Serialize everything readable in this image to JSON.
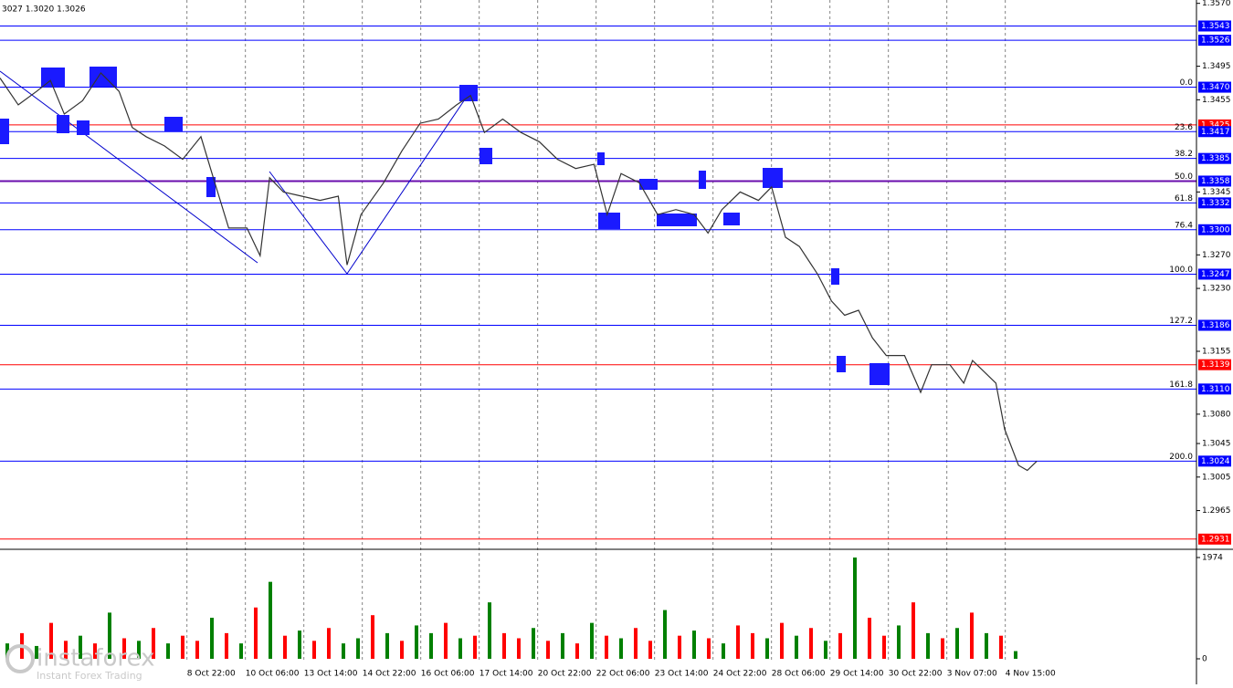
{
  "chart_data": [
    {
      "type": "line",
      "header": "3027 1.3020 1.3026",
      "color": "#333333",
      "x": [
        0,
        2.5,
        5,
        6.9,
        8.8,
        11.3,
        13.8,
        16.3,
        18.1,
        20,
        22.5,
        25,
        27.5,
        29.4,
        31.3,
        33.8,
        35.6,
        36.9,
        38.8,
        41.3,
        43.8,
        46.3,
        47.5,
        49.4,
        52.5,
        55,
        57.5,
        60,
        62.5,
        64.4,
        66.3,
        68.8,
        71.3,
        73.8,
        76.3,
        78.8,
        81.3,
        83.1,
        85,
        87.5,
        90,
        92.5,
        95,
        96.9,
        98.8,
        101.3,
        103.8,
        105.6,
        107.5,
        109.4,
        111.9,
        113.8,
        115.6,
        117.5,
        119.4,
        121.3,
        123.8,
        126,
        127.5,
        130,
        131.9,
        133.1,
        135,
        136.3,
        137.5,
        139.4,
        140.6,
        141.9
      ],
      "values": [
        1.3481,
        1.3449,
        1.3465,
        1.3478,
        1.3438,
        1.3454,
        1.3487,
        1.3465,
        1.3422,
        1.3411,
        1.34,
        1.3384,
        1.3411,
        1.3356,
        1.3302,
        1.3302,
        1.3269,
        1.3362,
        1.3345,
        1.334,
        1.3335,
        1.334,
        1.3258,
        1.3318,
        1.3356,
        1.3394,
        1.3427,
        1.3432,
        1.3449,
        1.346,
        1.3416,
        1.3432,
        1.3416,
        1.3405,
        1.3384,
        1.3373,
        1.3378,
        1.3318,
        1.3367,
        1.3356,
        1.3318,
        1.3324,
        1.3318,
        1.3296,
        1.3324,
        1.3345,
        1.3335,
        1.3351,
        1.3291,
        1.328,
        1.3247,
        1.3215,
        1.3198,
        1.3204,
        1.3171,
        1.315,
        1.315,
        1.3106,
        1.3139,
        1.3139,
        1.3117,
        1.3144,
        1.3128,
        1.3117,
        1.3062,
        1.3019,
        1.3013,
        1.3024
      ],
      "xlim": [
        0,
        163.75
      ],
      "ylim": [
        1.2921,
        1.3574
      ],
      "xticks": [
        {
          "value": 25.6,
          "label": "8 Oct 22:00"
        },
        {
          "value": 33.6,
          "label": "10 Oct 06:00"
        },
        {
          "value": 41.6,
          "label": "13 Oct 14:00"
        },
        {
          "value": 49.6,
          "label": "14 Oct 22:00"
        },
        {
          "value": 57.6,
          "label": "16 Oct 06:00"
        },
        {
          "value": 65.6,
          "label": "17 Oct 14:00"
        },
        {
          "value": 73.6,
          "label": "20 Oct 22:00"
        },
        {
          "value": 81.6,
          "label": "22 Oct 06:00"
        },
        {
          "value": 89.6,
          "label": "23 Oct 14:00"
        },
        {
          "value": 97.6,
          "label": "24 Oct 22:00"
        },
        {
          "value": 105.6,
          "label": "28 Oct 06:00"
        },
        {
          "value": 113.6,
          "label": "29 Oct 14:00"
        },
        {
          "value": 121.6,
          "label": "30 Oct 22:00"
        },
        {
          "value": 129.6,
          "label": "3 Nov 07:00"
        },
        {
          "value": 137.6,
          "label": "4 Nov 15:00"
        }
      ],
      "yticks": [
        {
          "value": 1.357,
          "label": "1.3570"
        },
        {
          "value": 1.3495,
          "label": "1.3495"
        },
        {
          "value": 1.3455,
          "label": "1.3455"
        },
        {
          "value": 1.3345,
          "label": "1.3345"
        },
        {
          "value": 1.327,
          "label": "1.3270"
        },
        {
          "value": 1.323,
          "label": "1.3230"
        },
        {
          "value": 1.3155,
          "label": "1.3155"
        },
        {
          "value": 1.308,
          "label": "1.3080"
        },
        {
          "value": 1.3045,
          "label": "1.3045"
        },
        {
          "value": 1.3005,
          "label": "1.3005"
        },
        {
          "value": 1.2965,
          "label": "1.2965"
        }
      ],
      "grid": true,
      "levels": [
        {
          "value": 1.3543,
          "label": "1.3543",
          "color": "#0000ff"
        },
        {
          "value": 1.3526,
          "label": "1.3526",
          "color": "#0000ff"
        },
        {
          "value": 1.347,
          "label": "1.3470",
          "fib": "0.0",
          "color": "#0000ff"
        },
        {
          "value": 1.3425,
          "label": "1.3425",
          "color": "#ff0000"
        },
        {
          "value": 1.3417,
          "label": "1.3417",
          "fib": "23.6",
          "color": "#0000ff"
        },
        {
          "value": 1.3385,
          "label": "1.3385",
          "fib": "38.2",
          "color": "#0000ff"
        },
        {
          "value": 1.3358,
          "label": "1.3358",
          "fib": "50.0",
          "color": "#6a0dad"
        },
        {
          "value": 1.3332,
          "label": "1.3332",
          "fib": "61.8",
          "color": "#0000ff"
        },
        {
          "value": 1.33,
          "label": "1.3300",
          "fib": "76.4",
          "color": "#0000ff"
        },
        {
          "value": 1.3247,
          "label": "1.3247",
          "fib": "100.0",
          "color": "#0000ff"
        },
        {
          "value": 1.3186,
          "label": "1.3186",
          "fib": "127.2",
          "color": "#0000ff"
        },
        {
          "value": 1.3139,
          "label": "1.3139",
          "color": "#ff0000"
        },
        {
          "value": 1.311,
          "label": "1.3110",
          "fib": "161.8",
          "color": "#0000ff"
        },
        {
          "value": 1.3024,
          "label": "1.3024",
          "fib": "200.0",
          "color": "#0000ff"
        },
        {
          "value": 1.2931,
          "label": "1.2931",
          "color": "#ff0000"
        }
      ]
    },
    {
      "type": "bar",
      "x": [
        1,
        3,
        5,
        7,
        9,
        11,
        13,
        15,
        17,
        19,
        21,
        23,
        25,
        27,
        29,
        31,
        33,
        35,
        37,
        39,
        41,
        43,
        45,
        47,
        49,
        51,
        53,
        55,
        57,
        59,
        61,
        63,
        65,
        67,
        69,
        71,
        73,
        75,
        77,
        79,
        81,
        83,
        85,
        87,
        89,
        91,
        93,
        95,
        97,
        99,
        101,
        103,
        105,
        107,
        109,
        111,
        113,
        115,
        117,
        119,
        121,
        123,
        125,
        127,
        129,
        131,
        133,
        135,
        137,
        139
      ],
      "values": [
        300,
        500,
        250,
        700,
        350,
        450,
        300,
        900,
        400,
        350,
        600,
        300,
        450,
        350,
        800,
        500,
        300,
        1000,
        1500,
        450,
        550,
        350,
        600,
        300,
        400,
        850,
        500,
        350,
        650,
        500,
        700,
        400,
        450,
        1100,
        500,
        400,
        600,
        350,
        500,
        300,
        700,
        450,
        400,
        600,
        350,
        950,
        450,
        550,
        400,
        300,
        650,
        500,
        400,
        700,
        450,
        600,
        350,
        500,
        1974,
        800,
        450,
        650,
        1100,
        500,
        400,
        600,
        900,
        500,
        450,
        150
      ],
      "colors": [
        "#008000",
        "#ff0000",
        "#008000",
        "#ff0000",
        "#ff0000",
        "#008000",
        "#ff0000",
        "#008000",
        "#ff0000",
        "#008000",
        "#ff0000",
        "#008000",
        "#ff0000",
        "#ff0000",
        "#008000",
        "#ff0000",
        "#008000",
        "#ff0000",
        "#008000",
        "#ff0000",
        "#008000",
        "#ff0000",
        "#ff0000",
        "#008000",
        "#008000",
        "#ff0000",
        "#008000",
        "#ff0000",
        "#008000",
        "#008000",
        "#ff0000",
        "#008000",
        "#ff0000",
        "#008000",
        "#ff0000",
        "#ff0000",
        "#008000",
        "#ff0000",
        "#008000",
        "#ff0000",
        "#008000",
        "#ff0000",
        "#008000",
        "#ff0000",
        "#ff0000",
        "#008000",
        "#ff0000",
        "#008000",
        "#ff0000",
        "#008000",
        "#ff0000",
        "#ff0000",
        "#008000",
        "#ff0000",
        "#008000",
        "#ff0000",
        "#008000",
        "#ff0000",
        "#008000",
        "#ff0000",
        "#ff0000",
        "#008000",
        "#ff0000",
        "#008000",
        "#ff0000",
        "#008000",
        "#ff0000",
        "#008000",
        "#ff0000",
        "#008000"
      ],
      "xlim": [
        0,
        163.75
      ],
      "ylim": [
        0,
        1974
      ],
      "yticks": [
        0,
        1974
      ]
    }
  ],
  "watermark": {
    "brand": "instaforex",
    "tagline": "Instant Forex Trading"
  }
}
